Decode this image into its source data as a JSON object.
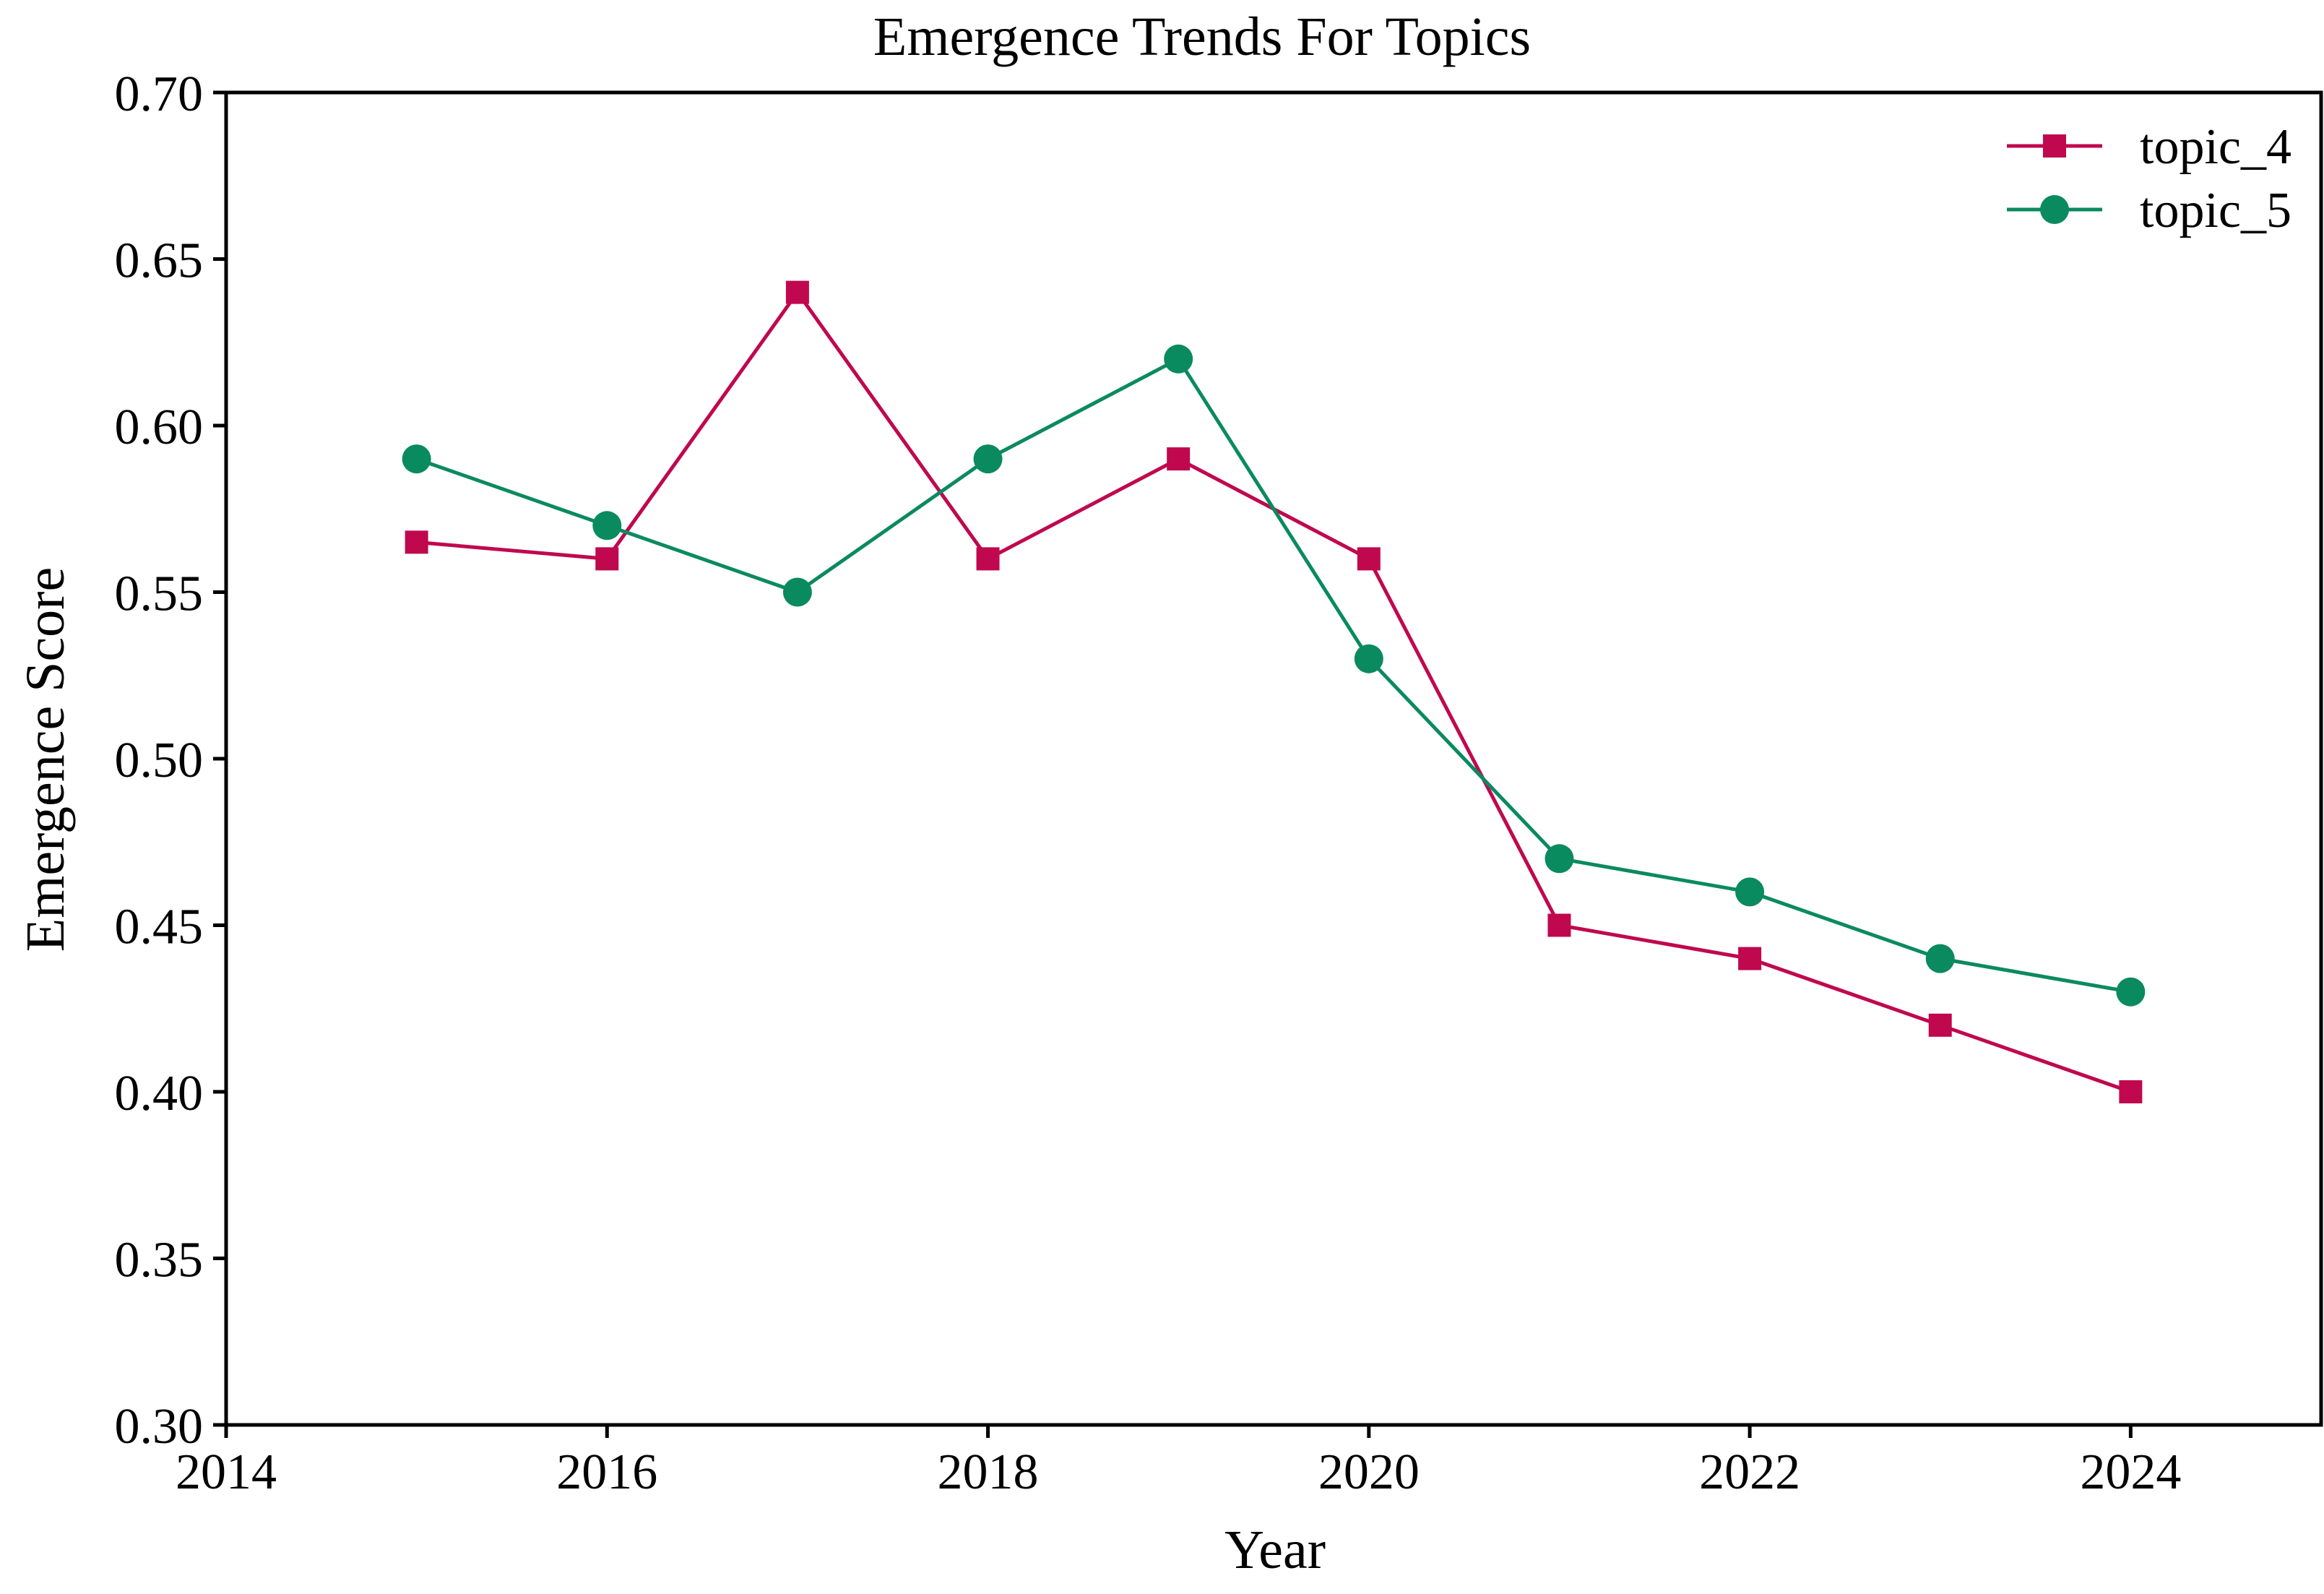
{
  "chart_data": {
    "type": "line",
    "title": "Emergence Trends For Topics",
    "xlabel": "Year",
    "ylabel": "Emergence Score",
    "xlim": [
      2014,
      2025
    ],
    "ylim": [
      0.3,
      0.7
    ],
    "x_ticks": [
      2014,
      2016,
      2018,
      2020,
      2022,
      2024
    ],
    "x_tick_labels": [
      "2014",
      "2016",
      "2018",
      "2020",
      "2022",
      "2024"
    ],
    "y_ticks": [
      0.3,
      0.35,
      0.4,
      0.45,
      0.5,
      0.55,
      0.6,
      0.65,
      0.7
    ],
    "y_tick_labels": [
      "0.30",
      "0.35",
      "0.40",
      "0.45",
      "0.50",
      "0.55",
      "0.60",
      "0.65",
      "0.70"
    ],
    "grid": false,
    "legend_position": "top-right",
    "x": [
      2015,
      2016,
      2017,
      2018,
      2019,
      2020,
      2021,
      2022,
      2023,
      2024
    ],
    "series": [
      {
        "name": "topic_4",
        "marker": "square",
        "color": "#c0084f",
        "values": [
          0.565,
          0.56,
          0.64,
          0.56,
          0.59,
          0.56,
          0.45,
          0.44,
          0.42,
          0.4
        ]
      },
      {
        "name": "topic_5",
        "marker": "circle",
        "color": "#0a8a5f",
        "values": [
          0.59,
          0.57,
          0.55,
          0.59,
          0.62,
          0.53,
          0.47,
          0.46,
          0.44,
          0.43
        ]
      }
    ]
  }
}
